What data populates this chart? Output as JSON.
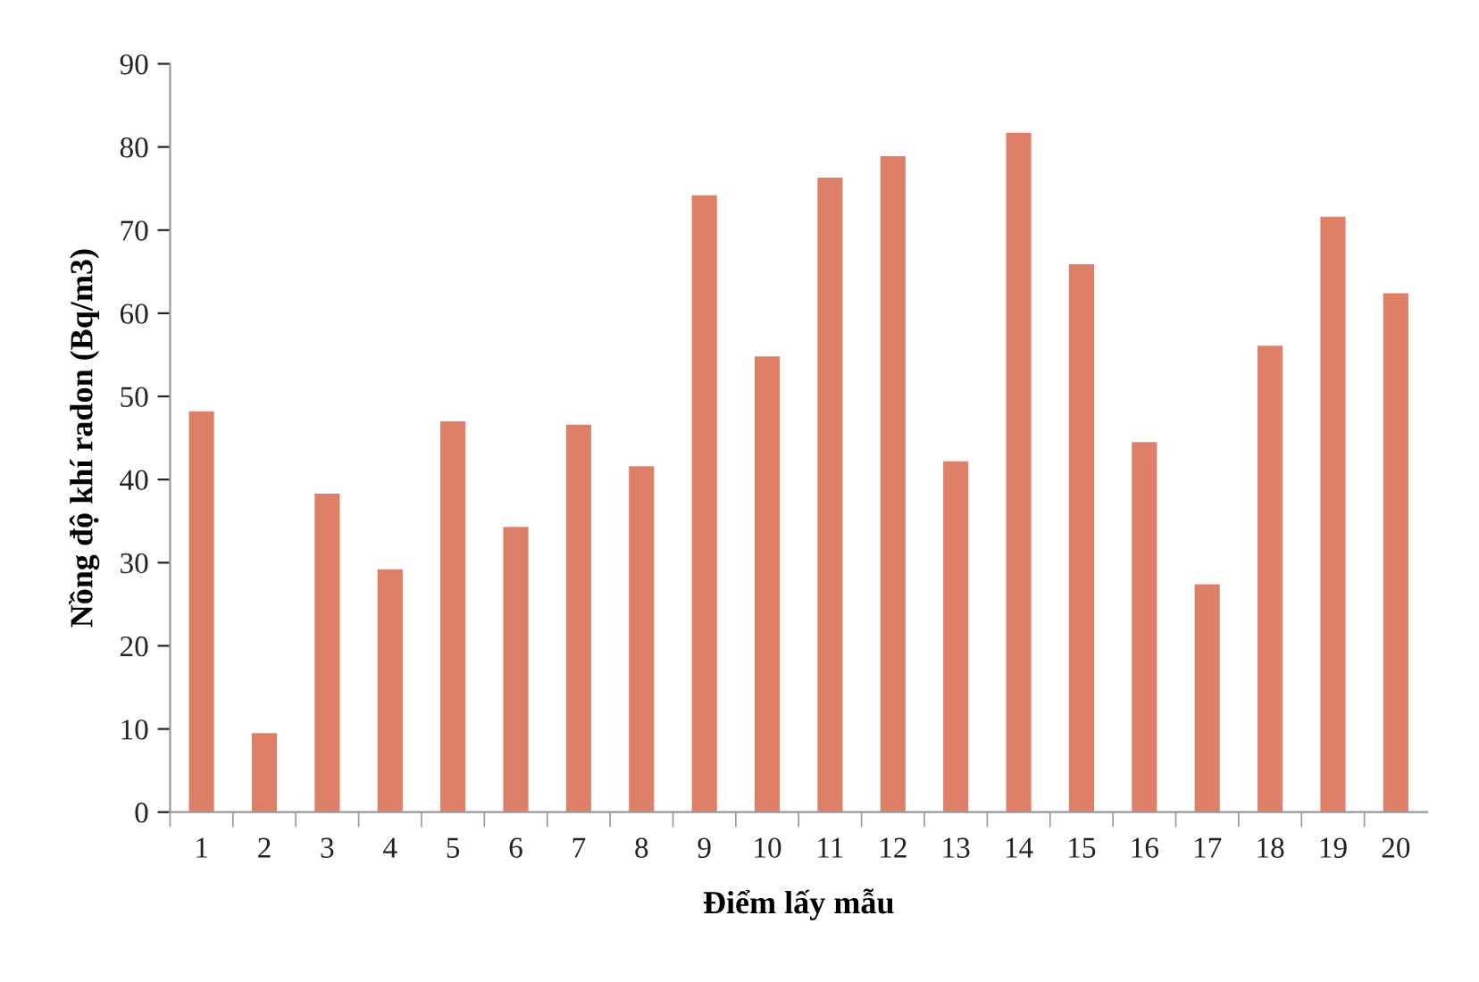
{
  "chart_data": {
    "type": "bar",
    "xlabel": "Điểm lấy mẫu",
    "ylabel": "Nồng độ khí radon (Bq/m3)",
    "categories": [
      "1",
      "2",
      "3",
      "4",
      "5",
      "6",
      "7",
      "8",
      "9",
      "10",
      "11",
      "12",
      "13",
      "14",
      "15",
      "16",
      "17",
      "18",
      "19",
      "20"
    ],
    "values": [
      48.2,
      9.5,
      38.3,
      29.2,
      47.0,
      34.3,
      46.6,
      41.6,
      74.2,
      54.8,
      76.3,
      78.9,
      42.2,
      81.7,
      65.9,
      44.5,
      27.4,
      56.1,
      71.6,
      62.4
    ],
    "color": "#de8068",
    "ylim": [
      0,
      90
    ],
    "yticks": [
      0,
      10,
      20,
      30,
      40,
      50,
      60,
      70,
      80,
      90
    ],
    "grid": false,
    "legend": false
  }
}
